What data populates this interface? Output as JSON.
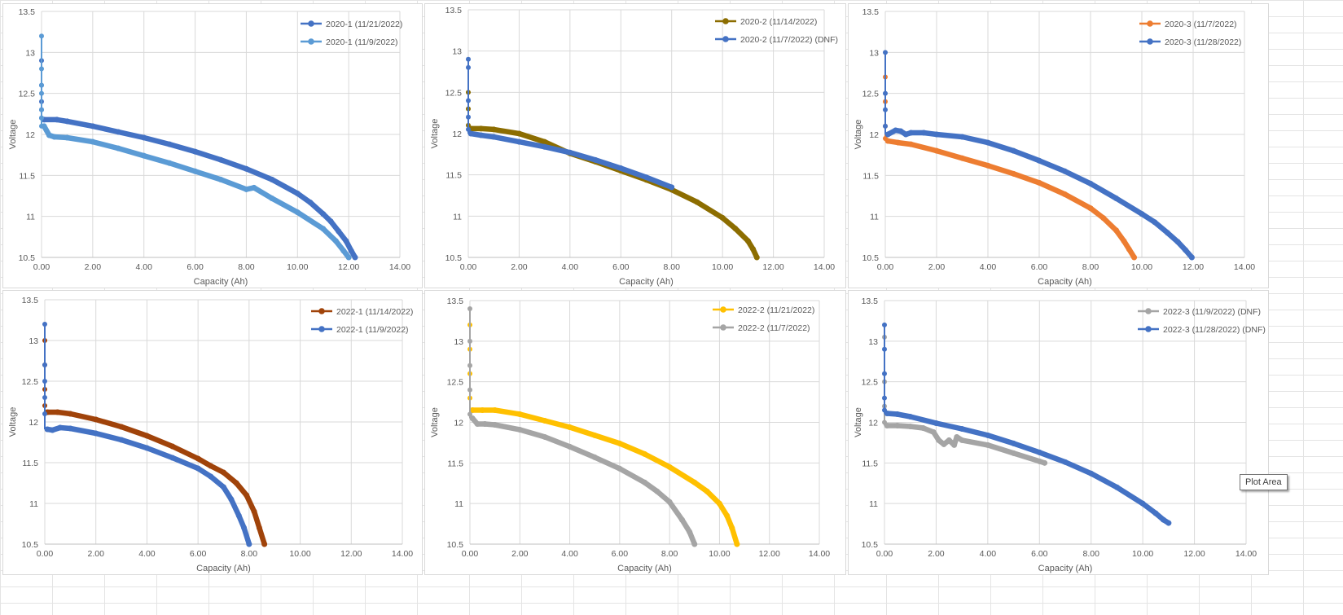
{
  "tooltip": {
    "label": "Plot Area"
  },
  "chart_data": [
    {
      "type": "scatter",
      "xlabel": "Capacity (Ah)",
      "ylabel": "Voltage",
      "xlim": [
        0,
        14
      ],
      "ylim": [
        10.5,
        13.5
      ],
      "xticks": [
        "0.00",
        "2.00",
        "4.00",
        "6.00",
        "8.00",
        "10.00",
        "12.00",
        "14.00"
      ],
      "yticks": [
        "10.5",
        "11",
        "11.5",
        "12",
        "12.5",
        "13",
        "13.5"
      ],
      "grid": true,
      "legend": "top-right",
      "series": [
        {
          "name": "2020-1 (11/21/2022)",
          "color": "#4472C4",
          "spike": [
            12.9,
            12.6,
            12.4,
            12.3,
            12.2
          ],
          "x": [
            0.1,
            0.6,
            1,
            2,
            3,
            4,
            5,
            6,
            7,
            8,
            9,
            10,
            10.5,
            11,
            11.3,
            11.6,
            11.9,
            12.1,
            12.25
          ],
          "y": [
            12.18,
            12.18,
            12.16,
            12.1,
            12.03,
            11.96,
            11.88,
            11.79,
            11.69,
            11.58,
            11.45,
            11.28,
            11.17,
            11.03,
            10.94,
            10.82,
            10.7,
            10.58,
            10.5
          ]
        },
        {
          "name": "2020-1 (11/9/2022)",
          "color": "#5B9BD5",
          "spike": [
            13.2,
            12.8,
            12.6,
            12.5,
            12.3,
            12.2,
            12.1
          ],
          "x": [
            0.1,
            0.3,
            0.5,
            1,
            2,
            3,
            4,
            5,
            6,
            7,
            8,
            8.3,
            9,
            10,
            11,
            11.5,
            11.8,
            12.0
          ],
          "y": [
            12.1,
            11.99,
            11.97,
            11.96,
            11.91,
            11.83,
            11.74,
            11.65,
            11.55,
            11.45,
            11.33,
            11.35,
            11.22,
            11.05,
            10.85,
            10.7,
            10.58,
            10.5
          ]
        }
      ]
    },
    {
      "type": "scatter",
      "xlabel": "Capacity (Ah)",
      "ylabel": "Voltage",
      "xlim": [
        0,
        14
      ],
      "ylim": [
        10.5,
        13.5
      ],
      "xticks": [
        "0.00",
        "2.00",
        "4.00",
        "6.00",
        "8.00",
        "10.00",
        "12.00",
        "14.00"
      ],
      "yticks": [
        "10.5",
        "11",
        "11.5",
        "12",
        "12.5",
        "13",
        "13.5"
      ],
      "grid": true,
      "legend": "top-right",
      "series": [
        {
          "name": "2020-2 (11/14/2022)",
          "color": "#8C6D00",
          "spike": [
            12.5,
            12.3,
            12.1
          ],
          "x": [
            0.1,
            0.5,
            1,
            2,
            3,
            4,
            5,
            6,
            7,
            8,
            9,
            10,
            10.5,
            11,
            11.2,
            11.35
          ],
          "y": [
            12.06,
            12.06,
            12.05,
            12.0,
            11.9,
            11.76,
            11.66,
            11.55,
            11.44,
            11.32,
            11.17,
            10.98,
            10.85,
            10.7,
            10.6,
            10.5
          ]
        },
        {
          "name": "2020-2 (11/7/2022) (DNF)",
          "color": "#4472C4",
          "spike": [
            12.9,
            12.8,
            12.4,
            12.2,
            12.05
          ],
          "x": [
            0.1,
            0.5,
            1,
            2,
            3,
            4,
            5,
            6,
            7,
            8
          ],
          "y": [
            12.0,
            11.98,
            11.96,
            11.9,
            11.84,
            11.77,
            11.68,
            11.58,
            11.47,
            11.35
          ]
        }
      ]
    },
    {
      "type": "scatter",
      "xlabel": "Capacity (Ah)",
      "ylabel": "Voltage",
      "xlim": [
        0,
        14
      ],
      "ylim": [
        10.5,
        13.5
      ],
      "xticks": [
        "0.00",
        "2.00",
        "4.00",
        "6.00",
        "8.00",
        "10.00",
        "12.00",
        "14.00"
      ],
      "yticks": [
        "10.5",
        "11",
        "11.5",
        "12",
        "12.5",
        "13",
        "13.5"
      ],
      "grid": true,
      "legend": "top-right",
      "series": [
        {
          "name": "2020-3 (11/7/2022)",
          "color": "#ED7D31",
          "spike": [
            12.7,
            12.4,
            12.1,
            11.95
          ],
          "x": [
            0.1,
            0.5,
            1,
            2,
            3,
            4,
            5,
            6,
            7,
            8,
            8.5,
            9,
            9.3,
            9.5,
            9.7
          ],
          "y": [
            11.92,
            11.9,
            11.88,
            11.8,
            11.71,
            11.62,
            11.52,
            11.41,
            11.27,
            11.1,
            10.98,
            10.83,
            10.7,
            10.6,
            10.5
          ]
        },
        {
          "name": "2020-3 (11/28/2022)",
          "color": "#4472C4",
          "spike": [
            13.0,
            12.5,
            12.3,
            12.1
          ],
          "x": [
            0.1,
            0.4,
            0.6,
            0.8,
            1,
            1.5,
            2,
            3,
            4,
            5,
            6,
            7,
            8,
            9,
            10,
            10.5,
            11,
            11.4,
            11.7,
            11.95
          ],
          "y": [
            12.0,
            12.05,
            12.04,
            12.0,
            12.02,
            12.02,
            12.0,
            11.97,
            11.9,
            11.8,
            11.68,
            11.55,
            11.4,
            11.22,
            11.03,
            10.93,
            10.8,
            10.69,
            10.59,
            10.5
          ]
        }
      ]
    },
    {
      "type": "scatter",
      "xlabel": "Capacity (Ah)",
      "ylabel": "Voltage",
      "xlim": [
        0,
        14
      ],
      "ylim": [
        10.5,
        13.5
      ],
      "xticks": [
        "0.00",
        "2.00",
        "4.00",
        "6.00",
        "8.00",
        "10.00",
        "12.00",
        "14.00"
      ],
      "yticks": [
        "10.5",
        "11",
        "11.5",
        "12",
        "12.5",
        "13",
        "13.5"
      ],
      "grid": true,
      "legend": "top-right",
      "series": [
        {
          "name": "2022-1 (11/14/2022)",
          "color": "#A0430A",
          "spike": [
            13.0,
            12.7,
            12.4,
            12.2
          ],
          "x": [
            0.1,
            0.5,
            1,
            2,
            3,
            4,
            5,
            6,
            6.5,
            7,
            7.5,
            7.9,
            8.2,
            8.4,
            8.6
          ],
          "y": [
            12.12,
            12.12,
            12.1,
            12.03,
            11.94,
            11.83,
            11.7,
            11.55,
            11.46,
            11.38,
            11.25,
            11.1,
            10.9,
            10.7,
            10.5
          ]
        },
        {
          "name": "2022-1 (11/9/2022)",
          "color": "#4472C4",
          "spike": [
            13.2,
            12.7,
            12.5,
            12.3,
            12.1
          ],
          "x": [
            0.1,
            0.3,
            0.6,
            1,
            2,
            3,
            4,
            5,
            6,
            6.5,
            7,
            7.3,
            7.6,
            7.8,
            8.0
          ],
          "y": [
            11.91,
            11.9,
            11.93,
            11.92,
            11.86,
            11.78,
            11.68,
            11.56,
            11.43,
            11.33,
            11.2,
            11.05,
            10.85,
            10.7,
            10.5
          ]
        }
      ]
    },
    {
      "type": "scatter",
      "xlabel": "Capacity (Ah)",
      "ylabel": "Voltage",
      "xlim": [
        0,
        14
      ],
      "ylim": [
        10.5,
        13.5
      ],
      "xticks": [
        "0.00",
        "2.00",
        "4.00",
        "6.00",
        "8.00",
        "10.00",
        "12.00",
        "14.00"
      ],
      "yticks": [
        "10.5",
        "11",
        "11.5",
        "12",
        "12.5",
        "13",
        "13.5"
      ],
      "grid": true,
      "legend": "top-right",
      "series": [
        {
          "name": "2022-2 (11/21/2022)",
          "color": "#FFC000",
          "spike": [
            13.2,
            12.9,
            12.6,
            12.3
          ],
          "x": [
            0.1,
            0.5,
            1,
            2,
            3,
            4,
            5,
            6,
            7,
            8,
            9,
            9.5,
            10,
            10.3,
            10.5,
            10.7
          ],
          "y": [
            12.15,
            12.15,
            12.15,
            12.1,
            12.02,
            11.94,
            11.84,
            11.74,
            11.61,
            11.45,
            11.26,
            11.15,
            11.0,
            10.85,
            10.7,
            10.5
          ]
        },
        {
          "name": "2022-2 (11/7/2022)",
          "color": "#A5A5A5",
          "spike": [
            13.4,
            13.0,
            12.7,
            12.4,
            12.1
          ],
          "x": [
            0.1,
            0.3,
            0.6,
            1,
            2,
            3,
            4,
            5,
            6,
            7,
            7.5,
            8,
            8.5,
            8.8,
            9.0
          ],
          "y": [
            12.05,
            11.98,
            11.98,
            11.97,
            11.91,
            11.82,
            11.7,
            11.57,
            11.43,
            11.26,
            11.15,
            11.02,
            10.8,
            10.65,
            10.5
          ]
        }
      ]
    },
    {
      "type": "scatter",
      "xlabel": "Capacity (Ah)",
      "ylabel": "Voltage",
      "xlim": [
        0,
        14
      ],
      "ylim": [
        10.5,
        13.5
      ],
      "xticks": [
        "0.00",
        "2.00",
        "4.00",
        "6.00",
        "8.00",
        "10.00",
        "12.00",
        "14.00"
      ],
      "yticks": [
        "10.5",
        "11",
        "11.5",
        "12",
        "12.5",
        "13",
        "13.5"
      ],
      "grid": true,
      "legend": "top-right",
      "series": [
        {
          "name": "2022-3 (11/9/2022) (DNF)",
          "color": "#A5A5A5",
          "spike": [
            13.05,
            12.5,
            12.2,
            12.0
          ],
          "x": [
            0.1,
            0.5,
            1,
            1.5,
            1.9,
            2.1,
            2.3,
            2.5,
            2.7,
            2.8,
            3,
            4,
            5,
            6,
            6.2
          ],
          "y": [
            11.96,
            11.96,
            11.95,
            11.93,
            11.88,
            11.78,
            11.73,
            11.78,
            11.72,
            11.82,
            11.78,
            11.72,
            11.62,
            11.52,
            11.5
          ]
        },
        {
          "name": "2022-3 (11/28/2022) (DNF)",
          "color": "#4472C4",
          "spike": [
            13.2,
            12.9,
            12.6,
            12.3,
            12.15
          ],
          "x": [
            0.1,
            0.5,
            1,
            2,
            3,
            4,
            5,
            6,
            7,
            8,
            9,
            10,
            10.5,
            10.8,
            11.0
          ],
          "y": [
            12.11,
            12.1,
            12.07,
            11.99,
            11.92,
            11.84,
            11.74,
            11.63,
            11.51,
            11.37,
            11.2,
            11.0,
            10.88,
            10.8,
            10.76
          ]
        }
      ]
    }
  ]
}
